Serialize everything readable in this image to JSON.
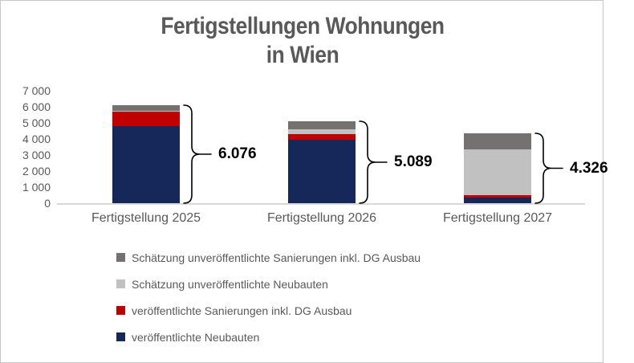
{
  "title": {
    "line1": "Fertigstellungen Wohnungen",
    "line2": "in Wien"
  },
  "colors": {
    "navy": "#16285A",
    "red": "#C00000",
    "light_gray": "#C1C1C1",
    "dark_gray": "#767171",
    "text_gray": "#595959",
    "axis_line": "#D9D9D9",
    "total_label": "#000000"
  },
  "legend": {
    "items": [
      {
        "label": "Schätzung unveröffentlichte Sanierungen inkl. DG Ausbau",
        "color": "#767171"
      },
      {
        "label": "Schätzung unveröffentlichte Neubauten",
        "color": "#C1C1C1"
      },
      {
        "label": "veröffentlichte Sanierungen inkl. DG Ausbau",
        "color": "#C00000"
      },
      {
        "label": "veröffentlichte Neubauten",
        "color": "#16285A"
      }
    ]
  },
  "chart_data": {
    "type": "bar",
    "stacked": true,
    "title": "Fertigstellungen Wohnungen in Wien",
    "categories": [
      "Fertigstellung 2025",
      "Fertigstellung 2026",
      "Fertigstellung 2027"
    ],
    "series": [
      {
        "name": "veröffentlichte Neubauten",
        "color": "#16285A",
        "values": [
          4810,
          3960,
          340
        ]
      },
      {
        "name": "veröffentlichte Sanierungen inkl. DG Ausbau",
        "color": "#C00000",
        "values": [
          875,
          340,
          150
        ]
      },
      {
        "name": "Schätzung unveröffentlichte Neubauten",
        "color": "#C1C1C1",
        "values": [
          74,
          295,
          2875
        ]
      },
      {
        "name": "Schätzung unveröffentlichte Sanierungen inkl. DG Ausbau",
        "color": "#767171",
        "values": [
          317,
          494,
          961
        ]
      }
    ],
    "totals": [
      6076,
      5089,
      4326
    ],
    "total_labels": [
      "6.076",
      "5.089",
      "4.326"
    ],
    "xlabel": "",
    "ylabel": "",
    "ylim": [
      0,
      7000
    ],
    "ytick_step": 1000,
    "ytick_labels": [
      "0",
      "1 000",
      "2 000",
      "3 000",
      "4 000",
      "5 000",
      "6 000",
      "7 000"
    ],
    "grid": false,
    "legend_position": "bottom-left",
    "annotations": "curly brace with total next to each bar"
  }
}
